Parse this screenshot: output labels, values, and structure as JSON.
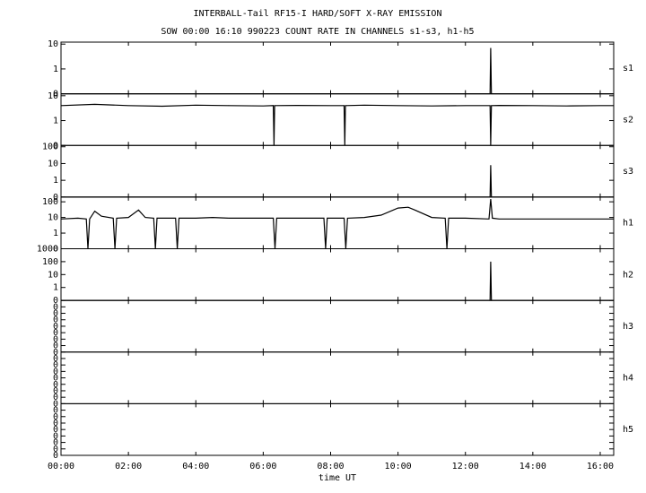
{
  "header": {
    "title": "INTERBALL-Tail RF15-I HARD/SOFT X-RAY EMISSION",
    "subtitle": "SOW 00:00 16:10 990223  COUNT RATE IN CHANNELS s1-s3, h1-h5"
  },
  "chart_data": [
    {
      "type": "line",
      "panel_label": "s1",
      "log": true,
      "xlim": [
        0,
        16.4
      ],
      "ylim": [
        0.1,
        12
      ],
      "yticks": [
        {
          "value": 0.1,
          "label": "0"
        },
        1,
        10
      ],
      "series": [
        {
          "color": "#000000",
          "x": [
            0,
            12.73,
            12.75,
            12.77,
            16.4
          ],
          "values": [
            0.1,
            0.1,
            7,
            0.1,
            0.1
          ]
        }
      ]
    },
    {
      "type": "line",
      "panel_label": "s2",
      "log": true,
      "xlim": [
        0,
        16.4
      ],
      "ylim": [
        0.1,
        12
      ],
      "yticks": [
        {
          "value": 0.1,
          "label": "0"
        },
        1,
        10
      ],
      "series": [
        {
          "color": "#000000",
          "x": [
            0,
            1,
            2,
            3,
            4,
            5,
            6,
            6.3,
            6.32,
            6.34,
            7,
            8,
            8.4,
            8.42,
            8.44,
            9,
            10,
            11,
            12,
            12.73,
            12.75,
            12.77,
            13,
            14,
            15,
            16,
            16.4
          ],
          "values": [
            4,
            4.5,
            4,
            3.8,
            4.2,
            4,
            3.9,
            4,
            0.1,
            4,
            4.1,
            4,
            4,
            0.1,
            4,
            4.2,
            4,
            3.9,
            4,
            4,
            0.1,
            4,
            4.1,
            4,
            3.9,
            4,
            4
          ]
        }
      ]
    },
    {
      "type": "line",
      "panel_label": "s3",
      "log": true,
      "xlim": [
        0,
        16.4
      ],
      "ylim": [
        0.1,
        120
      ],
      "yticks": [
        {
          "value": 0.1,
          "label": "0"
        },
        1,
        10,
        100
      ],
      "series": [
        {
          "color": "#000000",
          "x": [
            0,
            12.73,
            12.75,
            12.77,
            16.4
          ],
          "values": [
            0.1,
            0.1,
            8,
            0.1,
            0.1
          ]
        }
      ]
    },
    {
      "type": "line",
      "panel_label": "h1",
      "log": true,
      "xlim": [
        0,
        16.4
      ],
      "ylim": [
        0.1,
        200
      ],
      "yticks": [
        {
          "value": 0.1,
          "label": "0"
        },
        1,
        10,
        100
      ],
      "series": [
        {
          "color": "#000000",
          "x": [
            0,
            0.5,
            0.75,
            0.8,
            0.85,
            1.0,
            1.2,
            1.55,
            1.6,
            1.65,
            2.0,
            2.3,
            2.5,
            2.75,
            2.8,
            2.85,
            3.4,
            3.45,
            3.5,
            4.0,
            4.5,
            5.0,
            5.5,
            6.0,
            6.3,
            6.35,
            6.4,
            7.0,
            7.5,
            7.8,
            7.85,
            7.9,
            8.4,
            8.45,
            8.5,
            9.0,
            9.5,
            10.0,
            10.3,
            10.5,
            11.0,
            11.4,
            11.45,
            11.5,
            12.0,
            12.7,
            12.75,
            12.8,
            13.0,
            14.0,
            15.0,
            16.0,
            16.4
          ],
          "values": [
            8,
            9,
            8,
            0.1,
            8,
            25,
            12,
            9,
            0.1,
            9,
            10,
            30,
            10,
            9,
            0.1,
            9,
            9,
            0.1,
            9,
            9,
            10,
            9,
            9,
            9,
            9,
            0.1,
            9,
            9,
            9,
            9,
            0.1,
            9,
            9,
            0.1,
            9,
            10,
            14,
            40,
            45,
            30,
            10,
            9,
            0.1,
            9,
            9,
            8,
            150,
            9,
            8,
            8,
            8,
            8,
            8
          ]
        }
      ]
    },
    {
      "type": "line",
      "panel_label": "h2",
      "log": true,
      "xlim": [
        0,
        16.4
      ],
      "ylim": [
        0.1,
        1000
      ],
      "yticks": [
        {
          "value": 0.1,
          "label": "0"
        },
        1,
        10,
        100,
        1000
      ],
      "series": [
        {
          "color": "#000000",
          "x": [
            0,
            12.73,
            12.75,
            12.77,
            16.4
          ],
          "values": [
            0.1,
            0.1,
            100,
            0.1,
            0.1
          ]
        }
      ]
    },
    {
      "type": "line",
      "panel_label": "h3",
      "log": false,
      "xlim": [
        0,
        16.4
      ],
      "ylim": [
        0,
        1
      ],
      "yticks": [
        {
          "value": 0,
          "label": "0"
        },
        {
          "value": 0.125,
          "label": "0"
        },
        {
          "value": 0.25,
          "label": "0"
        },
        {
          "value": 0.375,
          "label": "0"
        },
        {
          "value": 0.5,
          "label": "0"
        },
        {
          "value": 0.625,
          "label": "0"
        },
        {
          "value": 0.75,
          "label": "0"
        },
        {
          "value": 0.875,
          "label": "0"
        }
      ],
      "series": []
    },
    {
      "type": "line",
      "panel_label": "h4",
      "log": false,
      "xlim": [
        0,
        16.4
      ],
      "ylim": [
        0,
        1
      ],
      "yticks": [
        {
          "value": 0,
          "label": "0"
        },
        {
          "value": 0.125,
          "label": "0"
        },
        {
          "value": 0.25,
          "label": "0"
        },
        {
          "value": 0.375,
          "label": "0"
        },
        {
          "value": 0.5,
          "label": "0"
        },
        {
          "value": 0.625,
          "label": "0"
        },
        {
          "value": 0.75,
          "label": "0"
        },
        {
          "value": 0.875,
          "label": "0"
        }
      ],
      "series": []
    },
    {
      "type": "line",
      "panel_label": "h5",
      "log": false,
      "xlim": [
        0,
        16.4
      ],
      "ylim": [
        0,
        1
      ],
      "yticks": [
        {
          "value": 0,
          "label": "0"
        },
        {
          "value": 0.125,
          "label": "0"
        },
        {
          "value": 0.25,
          "label": "0"
        },
        {
          "value": 0.375,
          "label": "0"
        },
        {
          "value": 0.5,
          "label": "0"
        },
        {
          "value": 0.625,
          "label": "0"
        },
        {
          "value": 0.75,
          "label": "0"
        },
        {
          "value": 0.875,
          "label": "0"
        }
      ],
      "series": [],
      "xlabel": "time UT",
      "xticks": [
        {
          "value": 0,
          "label": "00:00"
        },
        {
          "value": 2,
          "label": "02:00"
        },
        {
          "value": 4,
          "label": "04:00"
        },
        {
          "value": 6,
          "label": "06:00"
        },
        {
          "value": 8,
          "label": "08:00"
        },
        {
          "value": 10,
          "label": "10:00"
        },
        {
          "value": 12,
          "label": "12:00"
        },
        {
          "value": 14,
          "label": "14:00"
        },
        {
          "value": 16,
          "label": "16:00"
        }
      ]
    }
  ]
}
